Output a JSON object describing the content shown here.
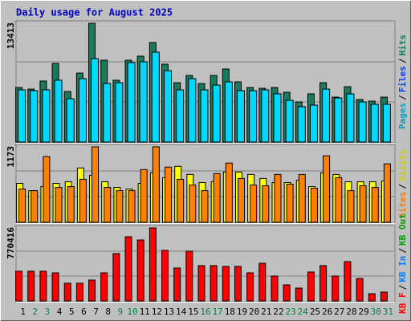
{
  "chart_data": [
    {
      "type": "bar",
      "title": "Daily usage for August 2025",
      "categories": [
        1,
        2,
        3,
        4,
        5,
        6,
        7,
        8,
        9,
        10,
        11,
        12,
        13,
        14,
        15,
        16,
        17,
        18,
        19,
        20,
        21,
        22,
        23,
        24,
        25,
        26,
        27,
        28,
        29,
        30,
        31
      ],
      "ylim": [
        0,
        13413
      ],
      "yticks": [
        13413
      ],
      "legend": [
        {
          "text": "Pages",
          "color": "#00a0c0"
        },
        {
          "text": "Files",
          "color": "#0040ff"
        },
        {
          "text": "Hits",
          "color": "#00805c"
        }
      ],
      "legend_separator": "/",
      "series": [
        {
          "color": "#1a7a5e",
          "values": [
            6160,
            5980,
            6890,
            8880,
            5710,
            7790,
            13413,
            9240,
            6980,
            9240,
            9700,
            11240,
            8790,
            6700,
            7520,
            6610,
            7520,
            8250,
            6800,
            6160,
            6070,
            6160,
            5620,
            4530,
            5440,
            6700,
            5070,
            6250,
            4800,
            4620,
            5070
          ]
        },
        {
          "color": "#00d8ff",
          "values": [
            5890,
            5800,
            5890,
            6980,
            4890,
            7160,
            9420,
            6610,
            6700,
            8970,
            9060,
            10150,
            8060,
            5890,
            7160,
            5890,
            6430,
            6800,
            5800,
            5800,
            5890,
            5440,
            4710,
            3990,
            4170,
            5980,
            4980,
            5440,
            4530,
            4260,
            4260
          ]
        }
      ]
    },
    {
      "type": "bar",
      "categories": [
        1,
        2,
        3,
        4,
        5,
        6,
        7,
        8,
        9,
        10,
        11,
        12,
        13,
        14,
        15,
        16,
        17,
        18,
        19,
        20,
        21,
        22,
        23,
        24,
        25,
        26,
        27,
        28,
        29,
        30,
        31
      ],
      "ylim": [
        0,
        1173
      ],
      "yticks": [
        1173
      ],
      "legend": [
        {
          "text": "Sites",
          "color": "#ff8000"
        },
        {
          "text": "Visits",
          "color": "#d0d000"
        }
      ],
      "legend_separator": "/",
      "series": [
        {
          "color": "#ffff00",
          "values": [
            605,
            492,
            555,
            605,
            631,
            845,
            731,
            631,
            542,
            517,
            605,
            769,
            694,
            870,
            744,
            618,
            631,
            782,
            782,
            744,
            681,
            618,
            618,
            656,
            555,
            769,
            744,
            631,
            631,
            631,
            643
          ]
        },
        {
          "color": "#ff8000",
          "values": [
            517,
            492,
            1022,
            542,
            555,
            668,
            1173,
            542,
            492,
            492,
            820,
            1173,
            858,
            668,
            580,
            492,
            757,
            921,
            681,
            580,
            568,
            744,
            593,
            744,
            530,
            1034,
            694,
            492,
            568,
            542,
            908
          ]
        }
      ]
    },
    {
      "type": "bar",
      "categories": [
        1,
        2,
        3,
        4,
        5,
        6,
        7,
        8,
        9,
        10,
        11,
        12,
        13,
        14,
        15,
        16,
        17,
        18,
        19,
        20,
        21,
        22,
        23,
        24,
        25,
        26,
        27,
        28,
        29,
        30,
        31
      ],
      "ylim": [
        0,
        770416
      ],
      "yticks": [
        770416
      ],
      "legend": [
        {
          "text": "KB F",
          "color": "#ff0000"
        },
        {
          "text": "KB In",
          "color": "#0080ff"
        },
        {
          "text": "KB Out",
          "color": "#00a000"
        }
      ],
      "legend_separator": "/",
      "highlight_categories": [
        2,
        3,
        9,
        10,
        16,
        17,
        23,
        24,
        30,
        31
      ],
      "highlight_color": "#008040",
      "category_color": "#000000",
      "series": [
        {
          "color": "#ff0000",
          "values": [
            313200,
            313200,
            313200,
            296300,
            186300,
            186300,
            220100,
            296300,
            499500,
            677300,
            643400,
            770416,
            533400,
            347100,
            524900,
            372500,
            372500,
            364000,
            364000,
            296300,
            397900,
            262400,
            169300,
            135500,
            304800,
            372500,
            262400,
            414800,
            237000,
            76200,
            93100
          ]
        }
      ]
    }
  ]
}
